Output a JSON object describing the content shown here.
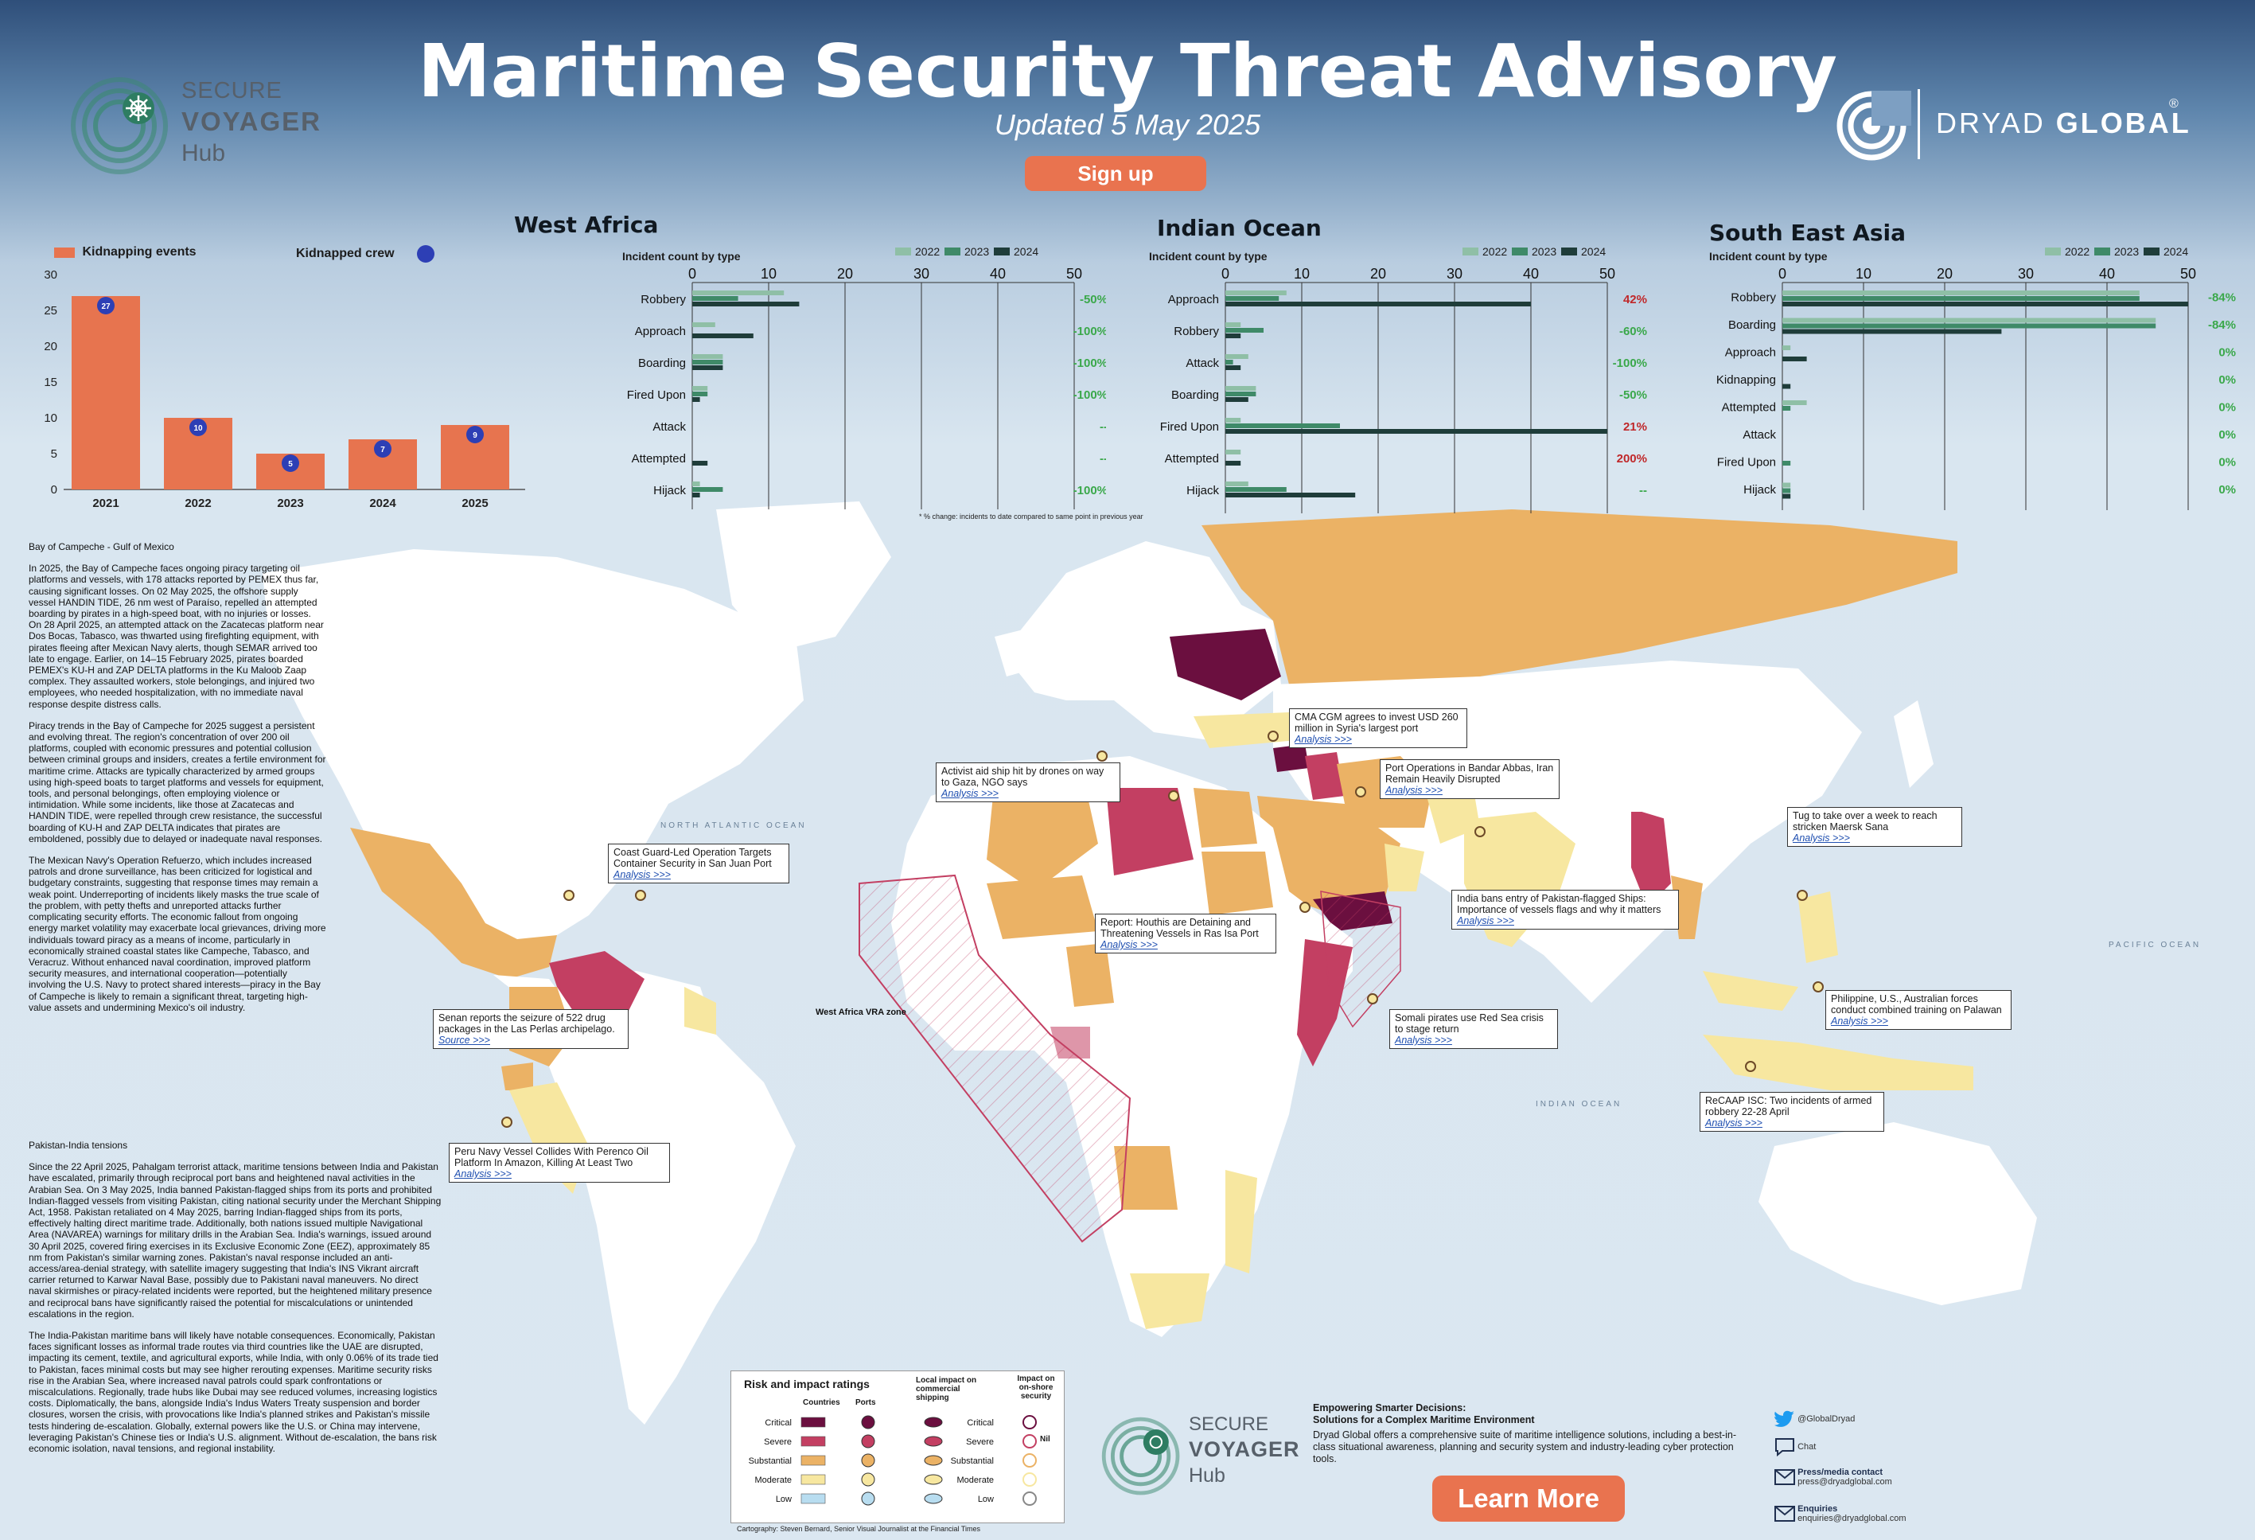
{
  "header": {
    "title": "Maritime Security Threat Advisory",
    "updated": "Updated 5 May 2025",
    "signup": "Sign up"
  },
  "logos": {
    "voyager_line1": "SECURE",
    "voyager_line2": "VOYAGER",
    "voyager_line3": "Hub",
    "dryad_light": "DRYAD",
    "dryad_bold": "GLOBAL",
    "dryad_reg": "®"
  },
  "panels": {
    "west_africa_title": "West Africa",
    "indian_ocean_title": "Indian Ocean",
    "sea_title": "South East Asia",
    "incident_label": "Incident count by type",
    "kidnap_label": "Kidnapping events",
    "crew_label": "Kidnapped crew",
    "footnote": "* % change: incidents to date compared to same point in previous year"
  },
  "colors": {
    "c2022": "#8fbfa6",
    "c2023": "#3f8a68",
    "c2024": "#1f3d3a",
    "kidnap": "#e7744f",
    "crew": "#2d3fb5",
    "critical": "#6b0f3f",
    "severe": "#c33f62",
    "substantial": "#ebb265",
    "moderate": "#f7e7a0",
    "low": "#b8ddf0",
    "land": "#ffffff",
    "ocean": "#dbe7f1"
  },
  "chart_data": [
    {
      "type": "bar",
      "title": "",
      "categories": [
        "2021",
        "2022",
        "2023",
        "2024",
        "2025"
      ],
      "series": [
        {
          "name": "Kidnapping events",
          "values": [
            27,
            10,
            5,
            7,
            9
          ]
        },
        {
          "name": "Kidnapped crew",
          "values": [
            27,
            10,
            5,
            7,
            9
          ],
          "labels": [
            "27",
            "10",
            "5",
            "7",
            "9"
          ]
        }
      ],
      "yticks": [
        "0",
        "5",
        "10",
        "15",
        "20",
        "25",
        "30"
      ],
      "ylim": [
        0,
        30
      ]
    },
    {
      "type": "bar",
      "orientation": "horizontal",
      "title": "West Africa",
      "xlabel": "Incident count by type",
      "xticks": [
        "0",
        "10",
        "20",
        "30",
        "40",
        "50"
      ],
      "xlim": [
        0,
        50
      ],
      "categories": [
        "Robbery",
        "Approach",
        "Boarding",
        "Fired Upon",
        "Attack",
        "Attempted",
        "Hijack"
      ],
      "series": [
        {
          "name": "2022",
          "values": [
            12,
            3,
            4,
            2,
            0,
            0,
            1
          ]
        },
        {
          "name": "2023",
          "values": [
            6,
            0,
            4,
            2,
            0,
            0,
            4
          ]
        },
        {
          "name": "2024",
          "values": [
            14,
            8,
            4,
            1,
            0,
            2,
            1
          ]
        }
      ],
      "changes": [
        "-50%",
        "-100%",
        "-100%",
        "-100%",
        "--",
        "--",
        "-100%"
      ]
    },
    {
      "type": "bar",
      "orientation": "horizontal",
      "title": "Indian Ocean",
      "xlabel": "Incident count by type",
      "xticks": [
        "0",
        "10",
        "20",
        "30",
        "40",
        "50"
      ],
      "xlim": [
        0,
        50
      ],
      "categories": [
        "Approach",
        "Robbery",
        "Attack",
        "Boarding",
        "Fired Upon",
        "Attempted",
        "Hijack"
      ],
      "series": [
        {
          "name": "2022",
          "values": [
            8,
            2,
            3,
            4,
            2,
            2,
            3
          ]
        },
        {
          "name": "2023",
          "values": [
            7,
            5,
            1,
            4,
            15,
            0,
            8
          ]
        },
        {
          "name": "2024",
          "values": [
            40,
            2,
            2,
            3,
            50,
            2,
            17
          ]
        }
      ],
      "changes": [
        "42%",
        "-60%",
        "-100%",
        "-50%",
        "21%",
        "200%",
        "--"
      ]
    },
    {
      "type": "bar",
      "orientation": "horizontal",
      "title": "South East Asia",
      "xlabel": "Incident count by type",
      "xticks": [
        "0",
        "10",
        "20",
        "30",
        "40",
        "50"
      ],
      "xlim": [
        0,
        50
      ],
      "categories": [
        "Robbery",
        "Boarding",
        "Approach",
        "Kidnapping",
        "Attempted",
        "Attack",
        "Fired Upon",
        "Hijack"
      ],
      "series": [
        {
          "name": "2022",
          "values": [
            44,
            46,
            1,
            0,
            3,
            0,
            0,
            1
          ]
        },
        {
          "name": "2023",
          "values": [
            44,
            46,
            0,
            0,
            1,
            0,
            1,
            1
          ]
        },
        {
          "name": "2024",
          "values": [
            50,
            27,
            3,
            1,
            0,
            0,
            0,
            1
          ]
        }
      ],
      "changes": [
        "-84%",
        "-84%",
        "0%",
        "0%",
        "0%",
        "0%",
        "0%",
        "0%"
      ]
    }
  ],
  "article": {
    "h1": "Bay of Campeche - Gulf of Mexico",
    "p1": "In 2025, the Bay of Campeche faces ongoing piracy targeting oil platforms and vessels, with 178 attacks reported by PEMEX thus far, causing significant losses. On 02 May 2025, the offshore supply vessel HANDIN TIDE, 26 nm west of Paraíso, repelled an attempted boarding by pirates in a high-speed boat, with no injuries or losses. On 28 April 2025, an attempted attack on the Zacatecas platform near Dos Bocas, Tabasco, was thwarted using firefighting equipment, with pirates fleeing after Mexican Navy alerts, though SEMAR arrived too late to engage. Earlier, on 14–15 February 2025, pirates boarded PEMEX's KU-H and ZAP DELTA platforms in the Ku Maloob Zaap complex. They assaulted workers, stole belongings, and injured two employees, who needed hospitalization, with no immediate naval response despite distress calls.",
    "p2": "Piracy trends in the Bay of Campeche for 2025 suggest a persistent and evolving threat. The region's concentration of over 200 oil platforms, coupled with economic pressures and potential collusion between criminal groups and insiders, creates a fertile environment for maritime crime. Attacks are typically characterized by armed groups using high-speed boats to target platforms and vessels for equipment, tools, and personal belongings, often employing violence or intimidation. While some incidents, like those at Zacatecas and HANDIN TIDE, were repelled through crew resistance, the successful boarding of KU-H and ZAP DELTA indicates that pirates are emboldened, possibly due to delayed or inadequate naval responses.",
    "p3": "The Mexican Navy's Operation Refuerzo, which includes increased patrols and drone surveillance, has been criticized for logistical and budgetary constraints, suggesting that response times may remain a weak point. Underreporting of incidents likely masks the true scale of the problem, with petty thefts and unreported attacks further complicating security efforts. The economic fallout from ongoing energy market volatility may exacerbate local grievances, driving more individuals toward piracy as a means of income, particularly in economically strained coastal states like Campeche, Tabasco, and Veracruz. Without enhanced naval coordination, improved platform security measures, and international cooperation—potentially involving the U.S. Navy to protect shared interests—piracy in the Bay of Campeche is likely to remain a significant threat, targeting high-value assets and undermining Mexico's oil industry.",
    "h2": "Pakistan-India tensions",
    "p4": "Since the 22 April 2025, Pahalgam terrorist attack, maritime tensions between India and Pakistan have escalated, primarily through reciprocal port bans and heightened naval activities in the Arabian Sea. On 3 May 2025, India banned Pakistan-flagged ships from its ports and prohibited Indian-flagged vessels from visiting Pakistan, citing national security under the Merchant Shipping Act, 1958. Pakistan retaliated on 4 May 2025, barring Indian-flagged ships from its ports, effectively halting direct maritime trade. Additionally, both nations issued multiple Navigational Area (NAVAREA) warnings for military drills in the Arabian Sea. India's warnings, issued around 30 April 2025, covered firing exercises in its Exclusive Economic Zone (EEZ), approximately 85 nm from Pakistan's similar warning zones. Pakistan's naval response included an anti-access/area-denial strategy, with satellite imagery suggesting that India's INS Vikrant aircraft carrier returned to Karwar Naval Base, possibly due to Pakistani naval maneuvers. No direct naval skirmishes or piracy-related incidents were reported, but the heightened military presence and reciprocal bans have significantly raised the potential for miscalculations or unintended escalations in the region.",
    "p5": "The India-Pakistan maritime bans will likely have notable consequences. Economically, Pakistan faces significant losses as informal trade routes via third countries like the UAE are disrupted, impacting its cement, textile, and agricultural exports, while India, with only 0.06% of its trade tied to Pakistan, faces minimal costs but may see higher rerouting expenses. Maritime security risks rise in the Arabian Sea, where increased naval patrols could spark confrontations or miscalculations. Regionally, trade hubs like Dubai may see reduced volumes, increasing logistics costs. Diplomatically, the bans, alongside India's Indus Waters Treaty suspension and border closures, worsen the crisis, with provocations like India's planned strikes and Pakistan's missile tests hindering de-escalation. Globally, external powers like the U.S. or China may intervene, leveraging Pakistan's Chinese ties or India's U.S. alignment. Without de-escalation, the bans risk economic isolation, naval tensions, and regional instability."
  },
  "callouts": [
    {
      "text": "CMA CGM agrees to invest USD 260 million in Syria's largest port",
      "link": "Analysis >>>"
    },
    {
      "text": "Activist aid ship hit by drones on way to Gaza, NGO says",
      "link": "Analysis >>>"
    },
    {
      "text": "Port Operations in Bandar Abbas, Iran Remain Heavily Disrupted",
      "link": "Analysis >>>"
    },
    {
      "text": "Tug to take over a week to reach stricken Maersk Sana",
      "link": "Analysis >>>"
    },
    {
      "text": "Coast Guard-Led Operation Targets Container Security in San Juan Port",
      "link": "Analysis >>>"
    },
    {
      "text": "India bans entry of Pakistan-flagged Ships: Importance of vessels flags and why it matters",
      "link": "Analysis >>>"
    },
    {
      "text": "Report: Houthis are Detaining and Threatening Vessels in Ras Isa Port",
      "link": "Analysis >>>"
    },
    {
      "text": "Philippine, U.S., Australian forces conduct combined training on Palawan",
      "link": "Analysis >>>"
    },
    {
      "text": "Senan reports the seizure of 522 drug packages in the Las Perlas archipelago.",
      "link": "Source >>>"
    },
    {
      "text": "Somali pirates use Red Sea crisis to stage return",
      "link": "Analysis >>>"
    },
    {
      "text": "ReCAAP ISC: Two incidents of armed robbery 22-28 April",
      "link": "Analysis >>>"
    },
    {
      "text": "Peru Navy Vessel Collides With Perenco Oil Platform In Amazon, Killing At Least Two",
      "link": "Analysis >>>"
    }
  ],
  "map_labels": {
    "vra": "West Africa VRA zone",
    "ocean1": "NORTH ATLANTIC OCEAN",
    "ocean2": "INDIAN OCEAN",
    "ocean3": "PACIFIC OCEAN"
  },
  "risk_legend": {
    "title": "Risk and impact ratings",
    "col_countries": "Countries",
    "col_ports": "Ports",
    "col_shipping": "Local impact on commercial shipping",
    "col_onshore": "Impact on on-shore security",
    "levels": [
      "Critical",
      "Severe",
      "Substantial",
      "Moderate",
      "Low"
    ],
    "nil": "Nil",
    "credit": "Cartography: Steven Bernard, Senior Visual Journalist at the Financial Times"
  },
  "promo": {
    "h1": "Empowering Smarter Decisions:",
    "h2": "Solutions for a Complex Maritime Environment",
    "body": "Dryad Global offers a comprehensive suite of maritime intelligence solutions, including a best-in-class situational awareness, planning and security system and industry-leading cyber protection tools.",
    "learn": "Learn More"
  },
  "contact": {
    "twitter": "@GlobalDryad",
    "chat": "Chat",
    "press_label": "Press/media contact",
    "press_email": "press@dryadglobal.com",
    "enq_label": "Enquiries",
    "enq_email": "enquiries@dryadglobal.com"
  }
}
